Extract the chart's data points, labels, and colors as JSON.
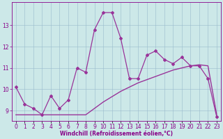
{
  "x": [
    0,
    1,
    2,
    3,
    4,
    5,
    6,
    7,
    8,
    9,
    10,
    11,
    12,
    13,
    14,
    15,
    16,
    17,
    18,
    19,
    20,
    21,
    22,
    23
  ],
  "y_main": [
    10.1,
    9.3,
    9.1,
    8.8,
    9.7,
    9.1,
    9.5,
    11.0,
    10.8,
    12.8,
    13.6,
    13.6,
    12.4,
    10.5,
    10.5,
    11.6,
    11.8,
    11.4,
    11.2,
    11.5,
    11.1,
    11.1,
    10.5,
    8.7
  ],
  "y_trend": [
    8.8,
    8.8,
    8.8,
    8.8,
    8.8,
    8.8,
    8.8,
    8.8,
    8.8,
    9.1,
    9.4,
    9.65,
    9.9,
    10.1,
    10.3,
    10.45,
    10.6,
    10.75,
    10.9,
    11.0,
    11.1,
    11.15,
    11.1,
    8.8
  ],
  "line_color": "#993399",
  "bg_color": "#cce8e8",
  "xlabel": "Windchill (Refroidissement éolien,°C)",
  "ylabel_ticks": [
    9,
    10,
    11,
    12,
    13
  ],
  "xtick_labels": [
    "0",
    "1",
    "2",
    "3",
    "4",
    "5",
    "6",
    "7",
    "8",
    "9",
    "10",
    "11",
    "12",
    "13",
    "14",
    "15",
    "16",
    "17",
    "18",
    "19",
    "20",
    "21",
    "22",
    "23"
  ],
  "ylim": [
    8.5,
    14.1
  ],
  "xlim": [
    -0.5,
    23.5
  ],
  "grid_color": "#99bbcc",
  "marker": "D",
  "markersize": 2.0,
  "linewidth": 0.9,
  "font_color": "#880088",
  "xlabel_fontsize": 5.5,
  "tick_fontsize": 5.5,
  "fig_width": 3.2,
  "fig_height": 2.0,
  "dpi": 100
}
